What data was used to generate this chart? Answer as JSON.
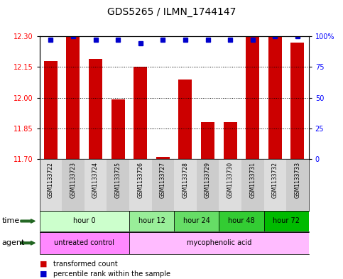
{
  "title": "GDS5265 / ILMN_1744147",
  "samples": [
    "GSM1133722",
    "GSM1133723",
    "GSM1133724",
    "GSM1133725",
    "GSM1133726",
    "GSM1133727",
    "GSM1133728",
    "GSM1133729",
    "GSM1133730",
    "GSM1133731",
    "GSM1133732",
    "GSM1133733"
  ],
  "bar_values": [
    12.18,
    12.3,
    12.19,
    11.99,
    12.15,
    11.71,
    12.09,
    11.88,
    11.88,
    12.3,
    12.3,
    12.27
  ],
  "percentile_dots": [
    97,
    100,
    97,
    97,
    94,
    97,
    97,
    97,
    97,
    97,
    100,
    100
  ],
  "ylim_left": [
    11.7,
    12.3
  ],
  "ylim_right": [
    0,
    100
  ],
  "yticks_left": [
    11.7,
    11.85,
    12.0,
    12.15,
    12.3
  ],
  "yticks_right": [
    0,
    25,
    50,
    75,
    100
  ],
  "bar_color": "#cc0000",
  "dot_color": "#0000cc",
  "bar_width": 0.6,
  "time_groups": [
    {
      "label": "hour 0",
      "start": 0,
      "end": 3,
      "color": "#ccffcc"
    },
    {
      "label": "hour 12",
      "start": 4,
      "end": 5,
      "color": "#99ee99"
    },
    {
      "label": "hour 24",
      "start": 6,
      "end": 7,
      "color": "#66dd66"
    },
    {
      "label": "hour 48",
      "start": 8,
      "end": 9,
      "color": "#33cc33"
    },
    {
      "label": "hour 72",
      "start": 10,
      "end": 11,
      "color": "#00bb00"
    }
  ],
  "agent_groups": [
    {
      "label": "untreated control",
      "start": 0,
      "end": 3,
      "color": "#ff88ff"
    },
    {
      "label": "mycophenolic acid",
      "start": 4,
      "end": 11,
      "color": "#ffbbff"
    }
  ],
  "legend_bar_label": "transformed count",
  "legend_dot_label": "percentile rank within the sample",
  "time_label": "time",
  "agent_label": "agent",
  "background_color": "#ffffff",
  "arrow_color": "#226622"
}
